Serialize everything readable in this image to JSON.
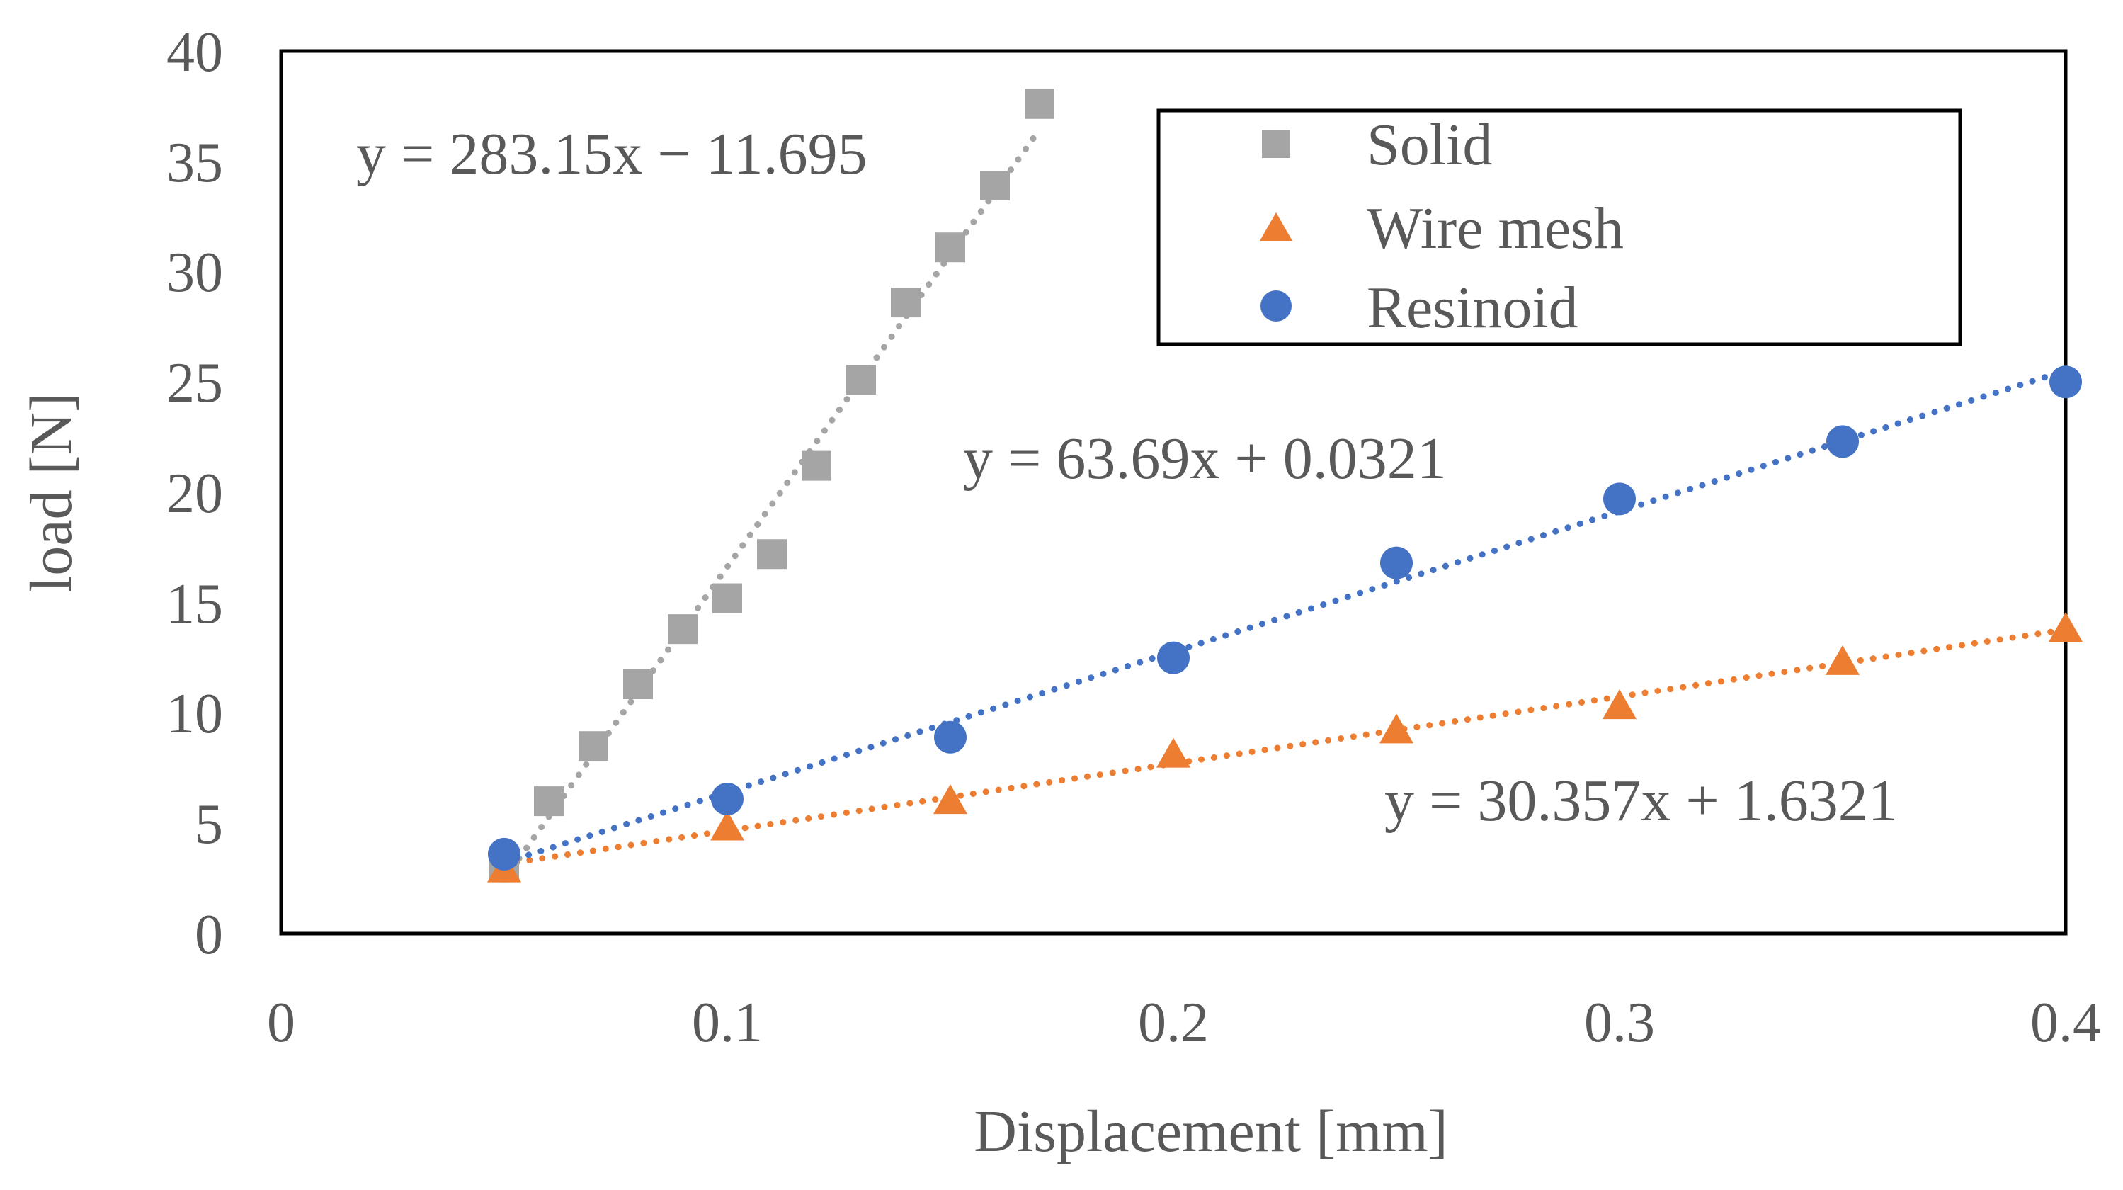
{
  "chart_data": {
    "type": "scatter",
    "title": "",
    "xlabel": "Displacement [mm]",
    "ylabel": "load [N]",
    "xlim": [
      0,
      0.4
    ],
    "ylim": [
      0,
      40
    ],
    "xticks": [
      0,
      0.1,
      0.2,
      0.3,
      0.4
    ],
    "xtick_labels": [
      "0",
      "0.1",
      "0.2",
      "0.3",
      "0.4"
    ],
    "yticks": [
      0,
      5,
      10,
      15,
      20,
      25,
      30,
      35,
      40
    ],
    "ytick_labels": [
      "0",
      "5",
      "10",
      "15",
      "20",
      "25",
      "30",
      "35",
      "40"
    ],
    "grid": false,
    "legend_position": "top-right",
    "series": [
      {
        "name": "Solid",
        "marker": "square",
        "color": "#A5A5A5",
        "trendline_color": "#A5A5A5",
        "x": [
          0.05,
          0.06,
          0.07,
          0.08,
          0.09,
          0.1,
          0.11,
          0.12,
          0.13,
          0.14,
          0.15,
          0.16,
          0.17
        ],
        "y": [
          3.0,
          6.0,
          8.5,
          11.3,
          13.8,
          15.2,
          17.2,
          21.2,
          25.1,
          28.6,
          31.1,
          33.9,
          37.6
        ],
        "trendline": {
          "slope": 283.15,
          "intercept": -11.695,
          "x_range": [
            0.05,
            0.17
          ]
        },
        "equation": "y = 283.15x − 11.695"
      },
      {
        "name": "Wire mesh",
        "marker": "triangle",
        "color": "#ED7D31",
        "trendline_color": "#ED7D31",
        "x": [
          0.05,
          0.1,
          0.15,
          0.2,
          0.25,
          0.3,
          0.35,
          0.4
        ],
        "y": [
          2.9,
          4.8,
          6.0,
          8.1,
          9.2,
          10.3,
          12.3,
          13.8
        ],
        "trendline": {
          "slope": 30.357,
          "intercept": 1.6321,
          "x_range": [
            0.05,
            0.4
          ]
        },
        "equation": "y = 30.357x + 1.6321"
      },
      {
        "name": "Resinoid",
        "marker": "circle",
        "color": "#4472C4",
        "trendline_color": "#4472C4",
        "x": [
          0.05,
          0.1,
          0.15,
          0.2,
          0.25,
          0.3,
          0.35,
          0.4
        ],
        "y": [
          3.6,
          6.1,
          8.9,
          12.5,
          16.8,
          19.7,
          22.3,
          25.0
        ],
        "trendline": {
          "slope": 63.69,
          "intercept": 0.0321,
          "x_range": [
            0.05,
            0.4
          ]
        },
        "equation": "y = 63.69x + 0.0321"
      }
    ]
  }
}
